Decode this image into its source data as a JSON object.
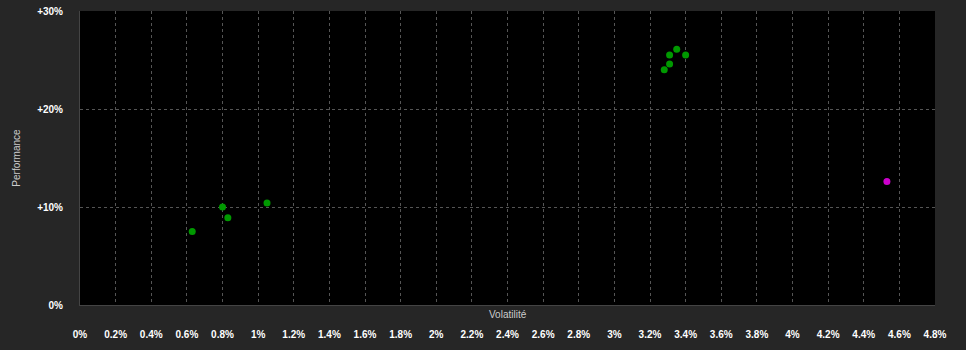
{
  "chart_data": {
    "type": "scatter",
    "xlabel": "Volatilité",
    "ylabel": "Performance",
    "xlim": [
      0,
      4.8
    ],
    "ylim": [
      0,
      30
    ],
    "xticks": [
      {
        "value": 0,
        "label": "0%"
      },
      {
        "value": 0.2,
        "label": "0.2%"
      },
      {
        "value": 0.4,
        "label": "0.4%"
      },
      {
        "value": 0.6,
        "label": "0.6%"
      },
      {
        "value": 0.8,
        "label": "0.8%"
      },
      {
        "value": 1,
        "label": "1%"
      },
      {
        "value": 1.2,
        "label": "1.2%"
      },
      {
        "value": 1.4,
        "label": "1.4%"
      },
      {
        "value": 1.6,
        "label": "1.6%"
      },
      {
        "value": 1.8,
        "label": "1.8%"
      },
      {
        "value": 2,
        "label": "2%"
      },
      {
        "value": 2.2,
        "label": "2.2%"
      },
      {
        "value": 2.4,
        "label": "2.4%"
      },
      {
        "value": 2.6,
        "label": "2.6%"
      },
      {
        "value": 2.8,
        "label": "2.8%"
      },
      {
        "value": 3,
        "label": "3%"
      },
      {
        "value": 3.2,
        "label": "3.2%"
      },
      {
        "value": 3.4,
        "label": "3.4%"
      },
      {
        "value": 3.6,
        "label": "3.6%"
      },
      {
        "value": 3.8,
        "label": "3.8%"
      },
      {
        "value": 4,
        "label": "4%"
      },
      {
        "value": 4.2,
        "label": "4.2%"
      },
      {
        "value": 4.4,
        "label": "4.4%"
      },
      {
        "value": 4.6,
        "label": "4.6%"
      },
      {
        "value": 4.8,
        "label": "4.8%"
      }
    ],
    "yticks": [
      {
        "value": 0,
        "label": "0%"
      },
      {
        "value": 10,
        "label": "+10%"
      },
      {
        "value": 20,
        "label": "+20%"
      },
      {
        "value": 30,
        "label": "+30%"
      }
    ],
    "grid": true,
    "series": [
      {
        "color": "#009900",
        "marker": "circle",
        "x": [
          0.63,
          0.8,
          0.83,
          1.05,
          3.28,
          3.31,
          3.31,
          3.35,
          3.4
        ],
        "values": [
          7.5,
          10.0,
          8.9,
          10.4,
          24.0,
          24.6,
          25.5,
          26.1,
          25.5
        ]
      },
      {
        "color": "#cc00cc",
        "marker": "circle",
        "x": [
          4.53
        ],
        "values": [
          12.6
        ]
      }
    ]
  }
}
